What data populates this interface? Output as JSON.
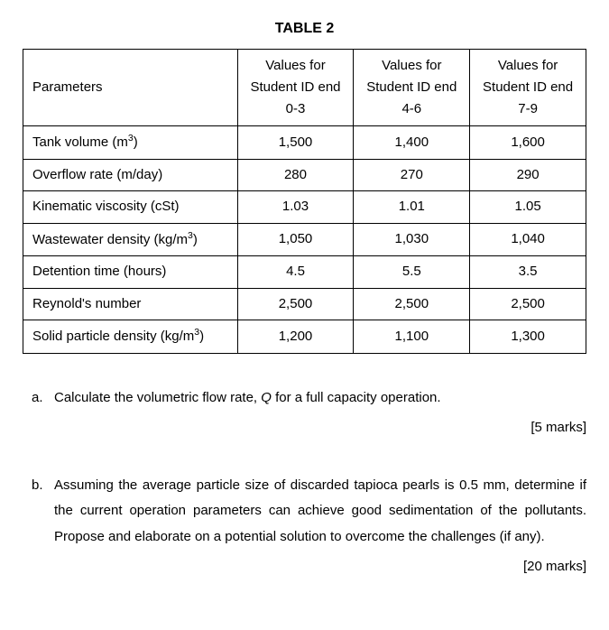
{
  "title": "TABLE 2",
  "table": {
    "columns": [
      "Parameters",
      "Values for Student ID end 0-3",
      "Values for Student ID end 4-6",
      "Values for Student ID end 7-9"
    ],
    "rows": [
      {
        "param_html": "Tank volume (m<sup>3</sup>)",
        "v1": "1,500",
        "v2": "1,400",
        "v3": "1,600"
      },
      {
        "param_html": "Overflow rate (m/day)",
        "v1": "280",
        "v2": "270",
        "v3": "290"
      },
      {
        "param_html": "Kinematic viscosity (cSt)",
        "v1": "1.03",
        "v2": "1.01",
        "v3": "1.05"
      },
      {
        "param_html": "Wastewater density (kg/m<sup>3</sup>)",
        "v1": "1,050",
        "v2": "1,030",
        "v3": "1,040"
      },
      {
        "param_html": "Detention time (hours)",
        "v1": "4.5",
        "v2": "5.5",
        "v3": "3.5"
      },
      {
        "param_html": "Reynold's number",
        "v1": "2,500",
        "v2": "2,500",
        "v3": "2,500"
      },
      {
        "param_html": "Solid particle density (kg/m<sup>3</sup>)",
        "v1": "1,200",
        "v2": "1,100",
        "v3": "1,300"
      }
    ]
  },
  "questions": {
    "a": {
      "letter": "a.",
      "text_html": "Calculate the volumetric flow rate, <span class=\"italic\">Q</span> for a full capacity operation.",
      "marks": "[5 marks]"
    },
    "b": {
      "letter": "b.",
      "text_html": "Assuming the average particle size of discarded tapioca pearls is 0.5 mm, determine if the current operation parameters can achieve good sedimentation of the pollutants. Propose and elaborate on a potential solution to overcome the challenges (if any).",
      "marks": "[20 marks]"
    }
  }
}
